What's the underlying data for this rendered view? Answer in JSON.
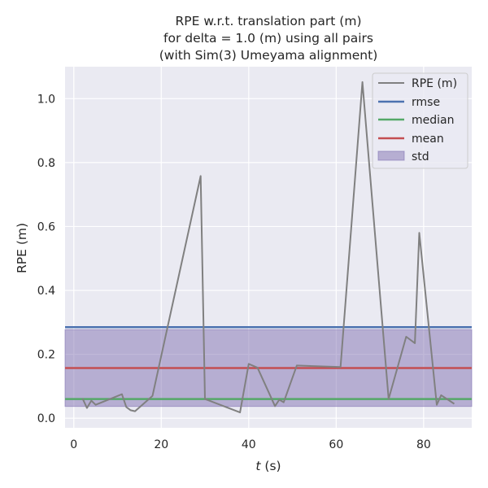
{
  "chart_data": {
    "type": "line",
    "title_lines": [
      "RPE w.r.t. translation part (m)",
      "for delta = 1.0 (m) using all pairs",
      "(with Sim(3) Umeyama alignment)"
    ],
    "xlabel_var": "t",
    "xlabel_unit": " (s)",
    "ylabel": "RPE (m)",
    "xlim": [
      -2,
      91
    ],
    "ylim": [
      -0.03,
      1.1
    ],
    "xticks": [
      0,
      20,
      40,
      60,
      80
    ],
    "yticks": [
      0.0,
      0.2,
      0.4,
      0.6,
      0.8,
      1.0
    ],
    "ytick_labels": [
      "0.0",
      "0.2",
      "0.4",
      "0.6",
      "0.8",
      "1.0"
    ],
    "grid": true,
    "legend_position": "top-right",
    "series": [
      {
        "name": "RPE (m)",
        "color": "#808080",
        "x": [
          2,
          3,
          4,
          5,
          11,
          12,
          13,
          14,
          18,
          29,
          30,
          38,
          40,
          42,
          46,
          47,
          48,
          51,
          61,
          66,
          72,
          76,
          78,
          79,
          83,
          84,
          87
        ],
        "y": [
          0.062,
          0.032,
          0.055,
          0.042,
          0.075,
          0.035,
          0.025,
          0.022,
          0.07,
          0.758,
          0.06,
          0.018,
          0.17,
          0.158,
          0.038,
          0.058,
          0.05,
          0.165,
          0.16,
          1.052,
          0.06,
          0.255,
          0.235,
          0.58,
          0.042,
          0.072,
          0.045
        ]
      }
    ],
    "stats": {
      "rmse": {
        "name": "rmse",
        "value": 0.285,
        "color": "#4c72b0"
      },
      "median": {
        "name": "median",
        "value": 0.06,
        "color": "#55a868"
      },
      "mean": {
        "name": "mean",
        "value": 0.157,
        "color": "#c44e52"
      },
      "std": {
        "name": "std",
        "lower": 0.037,
        "upper": 0.277,
        "color": "#8172b2"
      }
    },
    "style": {
      "plot_bg": "#eaeaf2",
      "grid_color": "#ffffff"
    }
  }
}
